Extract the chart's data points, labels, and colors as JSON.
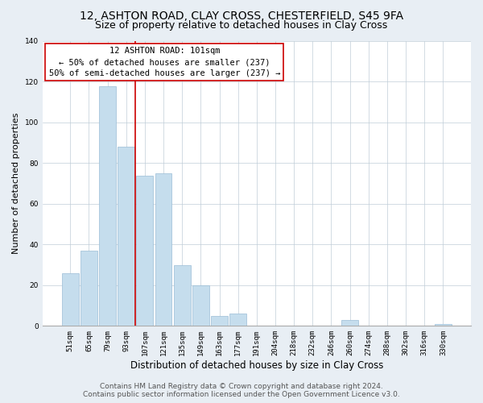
{
  "title": "12, ASHTON ROAD, CLAY CROSS, CHESTERFIELD, S45 9FA",
  "subtitle": "Size of property relative to detached houses in Clay Cross",
  "xlabel": "Distribution of detached houses by size in Clay Cross",
  "ylabel": "Number of detached properties",
  "footer_line1": "Contains HM Land Registry data © Crown copyright and database right 2024.",
  "footer_line2": "Contains public sector information licensed under the Open Government Licence v3.0.",
  "bar_labels": [
    "51sqm",
    "65sqm",
    "79sqm",
    "93sqm",
    "107sqm",
    "121sqm",
    "135sqm",
    "149sqm",
    "163sqm",
    "177sqm",
    "191sqm",
    "204sqm",
    "218sqm",
    "232sqm",
    "246sqm",
    "260sqm",
    "274sqm",
    "288sqm",
    "302sqm",
    "316sqm",
    "330sqm"
  ],
  "bar_values": [
    26,
    37,
    118,
    88,
    74,
    75,
    30,
    20,
    5,
    6,
    0,
    0,
    0,
    0,
    0,
    3,
    0,
    0,
    0,
    0,
    1
  ],
  "bar_color": "#c5dded",
  "bar_edge_color": "#9bbdd6",
  "ylim": [
    0,
    140
  ],
  "yticks": [
    0,
    20,
    40,
    60,
    80,
    100,
    120,
    140
  ],
  "vline_color": "#cc0000",
  "vline_pos": 3.5,
  "annotation_title": "12 ASHTON ROAD: 101sqm",
  "annotation_line1": "← 50% of detached houses are smaller (237)",
  "annotation_line2": "50% of semi-detached houses are larger (237) →",
  "annotation_box_color": "#ffffff",
  "annotation_box_edge": "#cc0000",
  "bg_color": "#e8eef4",
  "plot_bg_color": "#ffffff",
  "grid_color": "#c0cdd8",
  "title_fontsize": 10,
  "subtitle_fontsize": 9,
  "xlabel_fontsize": 8.5,
  "ylabel_fontsize": 8,
  "annotation_title_fontsize": 8,
  "annotation_body_fontsize": 7.5,
  "tick_fontsize": 6.5,
  "footer_fontsize": 6.5
}
